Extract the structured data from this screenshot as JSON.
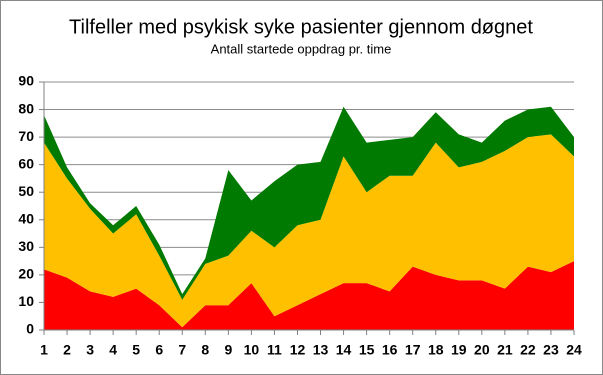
{
  "chart_data": {
    "type": "stacked_area",
    "title": "Tilfeller med psykisk syke pasienter gjennom døgnet",
    "subtitle": "Antall startede oppdrag pr. time",
    "categories": [
      "1",
      "2",
      "3",
      "4",
      "5",
      "6",
      "7",
      "8",
      "9",
      "10",
      "11",
      "12",
      "13",
      "14",
      "15",
      "16",
      "17",
      "18",
      "19",
      "20",
      "21",
      "22",
      "23",
      "24"
    ],
    "series": [
      {
        "color": "#ff0000",
        "values": [
          22,
          19,
          14,
          12,
          15,
          9,
          1,
          9,
          9,
          17,
          5,
          9,
          13,
          17,
          17,
          14,
          23,
          20,
          18,
          18,
          15,
          23,
          21,
          25
        ]
      },
      {
        "color": "#ffc000",
        "values": [
          46,
          36,
          30,
          23,
          27,
          18,
          10,
          15,
          18,
          19,
          25,
          29,
          27,
          46,
          33,
          42,
          33,
          48,
          41,
          43,
          50,
          47,
          50,
          38
        ]
      },
      {
        "color": "#007a00",
        "values": [
          10,
          4,
          2,
          3,
          3,
          4,
          2,
          2,
          31,
          11,
          24,
          22,
          21,
          18,
          18,
          13,
          14,
          11,
          12,
          7,
          11,
          10,
          10,
          7
        ]
      }
    ],
    "ylim": [
      0,
      90
    ],
    "yticks": [
      0,
      10,
      20,
      30,
      40,
      50,
      60,
      70,
      80,
      90
    ],
    "grid": true
  }
}
